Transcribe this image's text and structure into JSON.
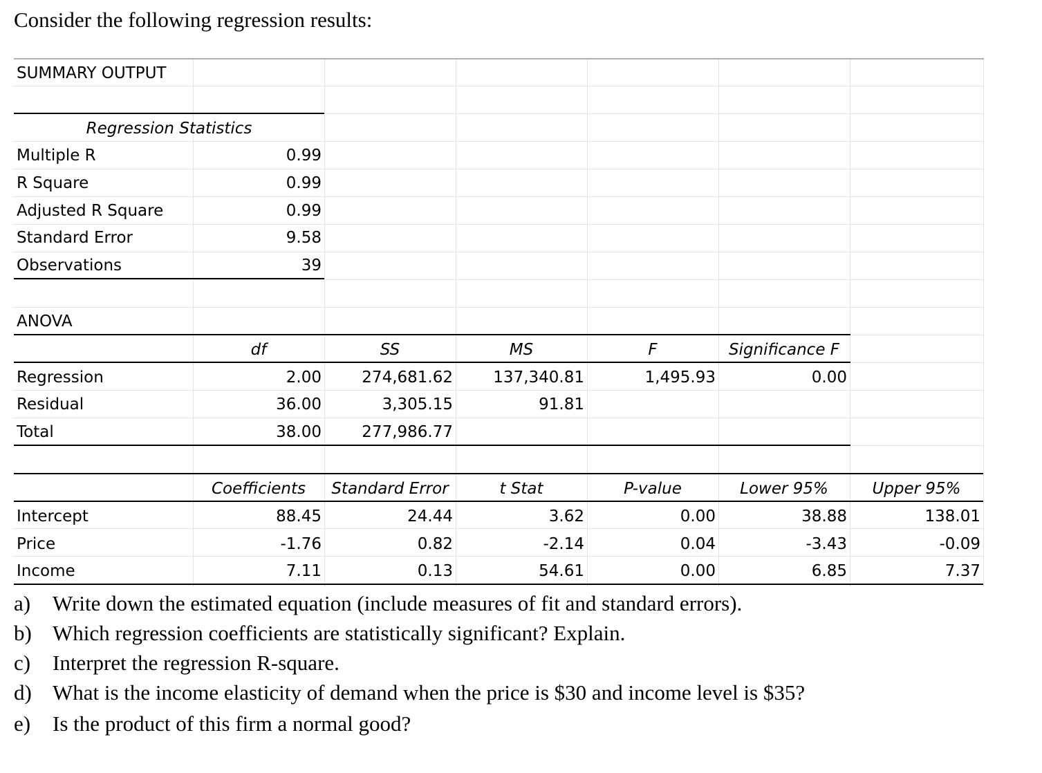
{
  "intro": "Consider the following regression results:",
  "summary_title": "SUMMARY OUTPUT",
  "regression_statistics": {
    "header": "Regression Statistics",
    "rows": [
      {
        "label": "Multiple R",
        "value": "0.99"
      },
      {
        "label": "R Square",
        "value": "0.99"
      },
      {
        "label": "Adjusted R Square",
        "value": "0.99"
      },
      {
        "label": "Standard Error",
        "value": "9.58"
      },
      {
        "label": "Observations",
        "value": "39"
      }
    ]
  },
  "anova": {
    "title": "ANOVA",
    "headers": [
      "df",
      "SS",
      "MS",
      "F",
      "Significance F"
    ],
    "rows": [
      {
        "label": "Regression",
        "df": "2.00",
        "ss": "274,681.62",
        "ms": "137,340.81",
        "f": "1,495.93",
        "sig": "0.00"
      },
      {
        "label": "Residual",
        "df": "36.00",
        "ss": "3,305.15",
        "ms": "91.81"
      },
      {
        "label": "Total",
        "df": "38.00",
        "ss": "277,986.77"
      }
    ]
  },
  "coefficients": {
    "headers": [
      "Coefficients",
      "Standard Error",
      "t Stat",
      "P-value",
      "Lower 95%",
      "Upper 95%"
    ],
    "rows": [
      {
        "label": "Intercept",
        "values": [
          "88.45",
          "24.44",
          "3.62",
          "0.00",
          "38.88",
          "138.01"
        ]
      },
      {
        "label": "Price",
        "values": [
          "-1.76",
          "0.82",
          "-2.14",
          "0.04",
          "-3.43",
          "-0.09"
        ]
      },
      {
        "label": "Income",
        "values": [
          "7.11",
          "0.13",
          "54.61",
          "0.00",
          "6.85",
          "7.37"
        ]
      }
    ]
  },
  "questions": [
    {
      "marker": "a)",
      "text": "Write down the estimated equation (include measures of fit and standard errors)."
    },
    {
      "marker": "b)",
      "text": "Which regression coefficients are statistically significant? Explain."
    },
    {
      "marker": "c)",
      "text": "Interpret the regression R-square."
    },
    {
      "marker": "d)",
      "text": "What is the income elasticity of demand when the price is $30 and income level is $35?"
    },
    {
      "marker": "e)",
      "text": "Is the product of this firm a normal good?"
    }
  ]
}
